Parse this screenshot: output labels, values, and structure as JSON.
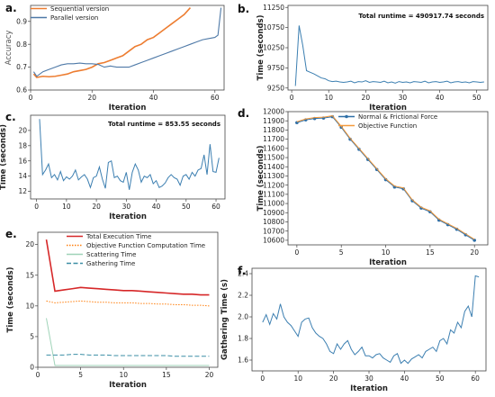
{
  "chart_data": [
    {
      "id": "a",
      "panel_label": "a.",
      "type": "line",
      "xlabel": "Iteration",
      "ylabel": "Accuracy",
      "xlim": [
        0,
        63
      ],
      "ylim": [
        0.6,
        0.97
      ],
      "xticks": [
        0,
        20,
        40,
        60
      ],
      "yticks": [
        0.6,
        0.7,
        0.8,
        0.9
      ],
      "legend": "top-left",
      "series": [
        {
          "name": "Sequential version",
          "color": "#ed7d31",
          "x": [
            1,
            2,
            4,
            6,
            8,
            10,
            12,
            14,
            16,
            18,
            20,
            22,
            24,
            26,
            28,
            30,
            32,
            34,
            36,
            38,
            40,
            42,
            44,
            46,
            48,
            50,
            52
          ],
          "y": [
            0.67,
            0.655,
            0.66,
            0.658,
            0.66,
            0.665,
            0.67,
            0.68,
            0.685,
            0.69,
            0.7,
            0.715,
            0.72,
            0.73,
            0.74,
            0.75,
            0.77,
            0.79,
            0.8,
            0.82,
            0.83,
            0.85,
            0.87,
            0.89,
            0.91,
            0.93,
            0.96
          ]
        },
        {
          "name": "Parallel version",
          "color": "#4e79a7",
          "x": [
            1,
            2,
            4,
            6,
            8,
            10,
            12,
            14,
            16,
            18,
            20,
            22,
            24,
            26,
            28,
            30,
            32,
            34,
            36,
            38,
            40,
            42,
            44,
            46,
            48,
            50,
            52,
            54,
            56,
            58,
            60,
            61,
            62
          ],
          "y": [
            0.68,
            0.66,
            0.68,
            0.69,
            0.7,
            0.71,
            0.715,
            0.715,
            0.718,
            0.715,
            0.715,
            0.712,
            0.7,
            0.705,
            0.7,
            0.7,
            0.7,
            0.71,
            0.72,
            0.73,
            0.74,
            0.75,
            0.76,
            0.77,
            0.78,
            0.79,
            0.8,
            0.81,
            0.82,
            0.825,
            0.83,
            0.84,
            0.96
          ]
        }
      ]
    },
    {
      "id": "b",
      "panel_label": "b.",
      "type": "line",
      "xlabel": "Iteration",
      "ylabel": "Time (seconds)",
      "annotation": "Total runtime = 490917.74 seconds",
      "xlim": [
        -1,
        53
      ],
      "ylim": [
        9200,
        11300
      ],
      "xticks": [
        0,
        10,
        20,
        30,
        40,
        50
      ],
      "yticks": [
        9250,
        9750,
        10250,
        10750,
        11250
      ],
      "series": [
        {
          "name": "",
          "color": "#3c7fb1",
          "x": [
            1,
            2,
            3,
            4,
            5,
            6,
            7,
            8,
            9,
            10,
            11,
            12,
            13,
            14,
            15,
            16,
            17,
            18,
            19,
            20,
            21,
            22,
            23,
            24,
            25,
            26,
            27,
            28,
            29,
            30,
            31,
            32,
            33,
            34,
            35,
            36,
            37,
            38,
            39,
            40,
            41,
            42,
            43,
            44,
            45,
            46,
            47,
            48,
            49,
            50,
            51,
            52
          ],
          "y": [
            9300,
            10800,
            10300,
            9680,
            9640,
            9600,
            9550,
            9500,
            9480,
            9430,
            9410,
            9420,
            9400,
            9390,
            9400,
            9420,
            9380,
            9410,
            9400,
            9430,
            9390,
            9410,
            9400,
            9390,
            9420,
            9380,
            9400,
            9370,
            9410,
            9390,
            9400,
            9380,
            9410,
            9400,
            9390,
            9420,
            9380,
            9400,
            9410,
            9390,
            9400,
            9420,
            9380,
            9400,
            9410,
            9390,
            9400,
            9380,
            9410,
            9400,
            9390,
            9400
          ]
        }
      ]
    },
    {
      "id": "c",
      "panel_label": "c.",
      "type": "line",
      "xlabel": "Iteration",
      "ylabel": "Time (seconds)",
      "annotation": "Total runtime = 853.55 seconds",
      "xlim": [
        -2,
        63
      ],
      "ylim": [
        11,
        22
      ],
      "xticks": [
        0,
        10,
        20,
        30,
        40,
        50,
        60
      ],
      "yticks": [
        12,
        14,
        16,
        18,
        20
      ],
      "series": [
        {
          "name": "",
          "color": "#3c7fb1",
          "x": [
            1,
            2,
            3,
            4,
            5,
            6,
            7,
            8,
            9,
            10,
            11,
            12,
            13,
            14,
            15,
            16,
            17,
            18,
            19,
            20,
            21,
            22,
            23,
            24,
            25,
            26,
            27,
            28,
            29,
            30,
            31,
            32,
            33,
            34,
            35,
            36,
            37,
            38,
            39,
            40,
            41,
            42,
            43,
            44,
            45,
            46,
            47,
            48,
            49,
            50,
            51,
            52,
            53,
            54,
            55,
            56,
            57,
            58,
            59,
            60,
            61
          ],
          "y": [
            21.5,
            14.2,
            14.8,
            15.6,
            13.8,
            14.2,
            13.5,
            14.6,
            13.4,
            13.9,
            13.6,
            14.0,
            14.8,
            13.5,
            13.9,
            14.2,
            13.6,
            12.5,
            13.8,
            14.0,
            15.2,
            13.6,
            12.4,
            15.8,
            16.0,
            13.8,
            14.0,
            13.4,
            13.2,
            14.5,
            12.2,
            14.5,
            15.6,
            14.8,
            13.2,
            14.0,
            13.8,
            14.2,
            13.0,
            13.4,
            12.5,
            12.7,
            13.1,
            13.8,
            14.2,
            13.8,
            13.6,
            12.8,
            14.0,
            14.2,
            13.6,
            14.5,
            14.0,
            14.8,
            15.0,
            16.8,
            14.2,
            18.2,
            14.6,
            14.5,
            16.4
          ]
        }
      ]
    },
    {
      "id": "d",
      "panel_label": "d.",
      "type": "line",
      "xlabel": "Iteration",
      "ylabel": "Time (seconds)",
      "xlim": [
        -1,
        21.5
      ],
      "ylim": [
        10550,
        12000
      ],
      "xticks": [
        0,
        5,
        10,
        15,
        20
      ],
      "yticks": [
        10600,
        10700,
        10800,
        10900,
        11000,
        11100,
        11200,
        11300,
        11400,
        11500,
        11600,
        11700,
        11800,
        11900,
        12000
      ],
      "legend": "top-right",
      "series": [
        {
          "name": "Normal & Frictional Force",
          "color": "#2f6fa6",
          "marker": "circle",
          "x": [
            0,
            1,
            2,
            3,
            4,
            5,
            6,
            7,
            8,
            9,
            10,
            11,
            12,
            13,
            14,
            15,
            16,
            17,
            18,
            19,
            20
          ],
          "y": [
            11880,
            11910,
            11925,
            11930,
            11945,
            11830,
            11700,
            11590,
            11480,
            11370,
            11260,
            11180,
            11160,
            11030,
            10950,
            10910,
            10820,
            10770,
            10720,
            10660,
            10600
          ]
        },
        {
          "name": "Objective Function",
          "color": "#f59a3c",
          "marker": "none",
          "x": [
            0,
            1,
            2,
            3,
            4,
            5,
            6,
            7,
            8,
            9,
            10,
            11,
            12,
            13,
            14,
            15,
            16,
            17,
            18,
            19,
            20
          ],
          "y": [
            11890,
            11920,
            11935,
            11940,
            11955,
            11840,
            11710,
            11600,
            11490,
            11380,
            11270,
            11190,
            11170,
            11040,
            10960,
            10920,
            10830,
            10780,
            10730,
            10670,
            10610
          ]
        }
      ]
    },
    {
      "id": "e",
      "panel_label": "e.",
      "type": "line",
      "xlabel": "Iteration",
      "ylabel": "Time (seconds)",
      "xlim": [
        0,
        21
      ],
      "ylim": [
        0,
        22
      ],
      "xticks": [
        0,
        5,
        10,
        15,
        20
      ],
      "yticks": [
        0,
        5,
        10,
        15,
        20
      ],
      "legend": "top-right",
      "series": [
        {
          "name": "Total Execution Time",
          "color": "#d62728",
          "dash": "solid",
          "x": [
            1,
            2,
            3,
            4,
            5,
            6,
            7,
            8,
            9,
            10,
            11,
            12,
            13,
            14,
            15,
            16,
            17,
            18,
            19,
            20
          ],
          "y": [
            20.8,
            12.4,
            12.6,
            12.8,
            13.0,
            12.9,
            12.8,
            12.7,
            12.6,
            12.5,
            12.5,
            12.4,
            12.3,
            12.2,
            12.1,
            12.0,
            11.9,
            11.9,
            11.8,
            11.8
          ]
        },
        {
          "name": "Objective Function Computation Time",
          "color": "#ff7f0e",
          "dash": "dotted",
          "x": [
            1,
            2,
            3,
            4,
            5,
            6,
            7,
            8,
            9,
            10,
            11,
            12,
            13,
            14,
            15,
            16,
            17,
            18,
            19,
            20
          ],
          "y": [
            10.8,
            10.5,
            10.6,
            10.7,
            10.8,
            10.7,
            10.6,
            10.6,
            10.5,
            10.5,
            10.5,
            10.4,
            10.4,
            10.3,
            10.3,
            10.2,
            10.2,
            10.1,
            10.1,
            10.0
          ]
        },
        {
          "name": "Scattering Time",
          "color": "#9fd3b8",
          "dash": "solid",
          "x": [
            1,
            2,
            3,
            4,
            5,
            6,
            7,
            8,
            9,
            10,
            11,
            12,
            13,
            14,
            15,
            16,
            17,
            18,
            19,
            20
          ],
          "y": [
            8.0,
            0.3,
            0.3,
            0.3,
            0.3,
            0.3,
            0.3,
            0.3,
            0.3,
            0.3,
            0.3,
            0.3,
            0.3,
            0.3,
            0.3,
            0.3,
            0.3,
            0.3,
            0.3,
            0.3
          ]
        },
        {
          "name": "Gathering Time",
          "color": "#3b8ea5",
          "dash": "dashed",
          "x": [
            1,
            2,
            3,
            4,
            5,
            6,
            7,
            8,
            9,
            10,
            11,
            12,
            13,
            14,
            15,
            16,
            17,
            18,
            19,
            20
          ],
          "y": [
            2.0,
            2.0,
            2.0,
            2.1,
            2.1,
            2.0,
            2.0,
            2.0,
            1.9,
            1.9,
            1.9,
            1.9,
            1.9,
            1.9,
            1.9,
            1.8,
            1.8,
            1.8,
            1.8,
            1.8
          ]
        }
      ]
    },
    {
      "id": "f",
      "panel_label": "f.",
      "type": "line",
      "xlabel": "Iteration",
      "ylabel": "Gathering Time (s)",
      "xlim": [
        -3,
        63
      ],
      "ylim": [
        1.5,
        2.45
      ],
      "xticks": [
        0,
        10,
        20,
        30,
        40,
        50,
        60
      ],
      "yticks": [
        1.6,
        1.8,
        2.0,
        2.2,
        2.4
      ],
      "series": [
        {
          "name": "",
          "color": "#3c7fb1",
          "x": [
            0,
            1,
            2,
            3,
            4,
            5,
            6,
            7,
            8,
            9,
            10,
            11,
            12,
            13,
            14,
            15,
            16,
            17,
            18,
            19,
            20,
            21,
            22,
            23,
            24,
            25,
            26,
            27,
            28,
            29,
            30,
            31,
            32,
            33,
            34,
            35,
            36,
            37,
            38,
            39,
            40,
            41,
            42,
            43,
            44,
            45,
            46,
            47,
            48,
            49,
            50,
            51,
            52,
            53,
            54,
            55,
            56,
            57,
            58,
            59,
            60,
            61
          ],
          "y": [
            1.95,
            2.02,
            1.93,
            2.03,
            1.98,
            2.12,
            2.0,
            1.95,
            1.92,
            1.87,
            1.82,
            1.95,
            1.98,
            1.99,
            1.9,
            1.85,
            1.82,
            1.8,
            1.75,
            1.68,
            1.66,
            1.75,
            1.7,
            1.75,
            1.78,
            1.7,
            1.65,
            1.68,
            1.72,
            1.64,
            1.64,
            1.62,
            1.65,
            1.66,
            1.62,
            1.6,
            1.58,
            1.64,
            1.66,
            1.57,
            1.6,
            1.57,
            1.61,
            1.63,
            1.65,
            1.62,
            1.68,
            1.7,
            1.72,
            1.68,
            1.78,
            1.8,
            1.75,
            1.88,
            1.85,
            1.95,
            1.9,
            2.05,
            2.1,
            2.0,
            2.38,
            2.37
          ]
        }
      ]
    }
  ]
}
